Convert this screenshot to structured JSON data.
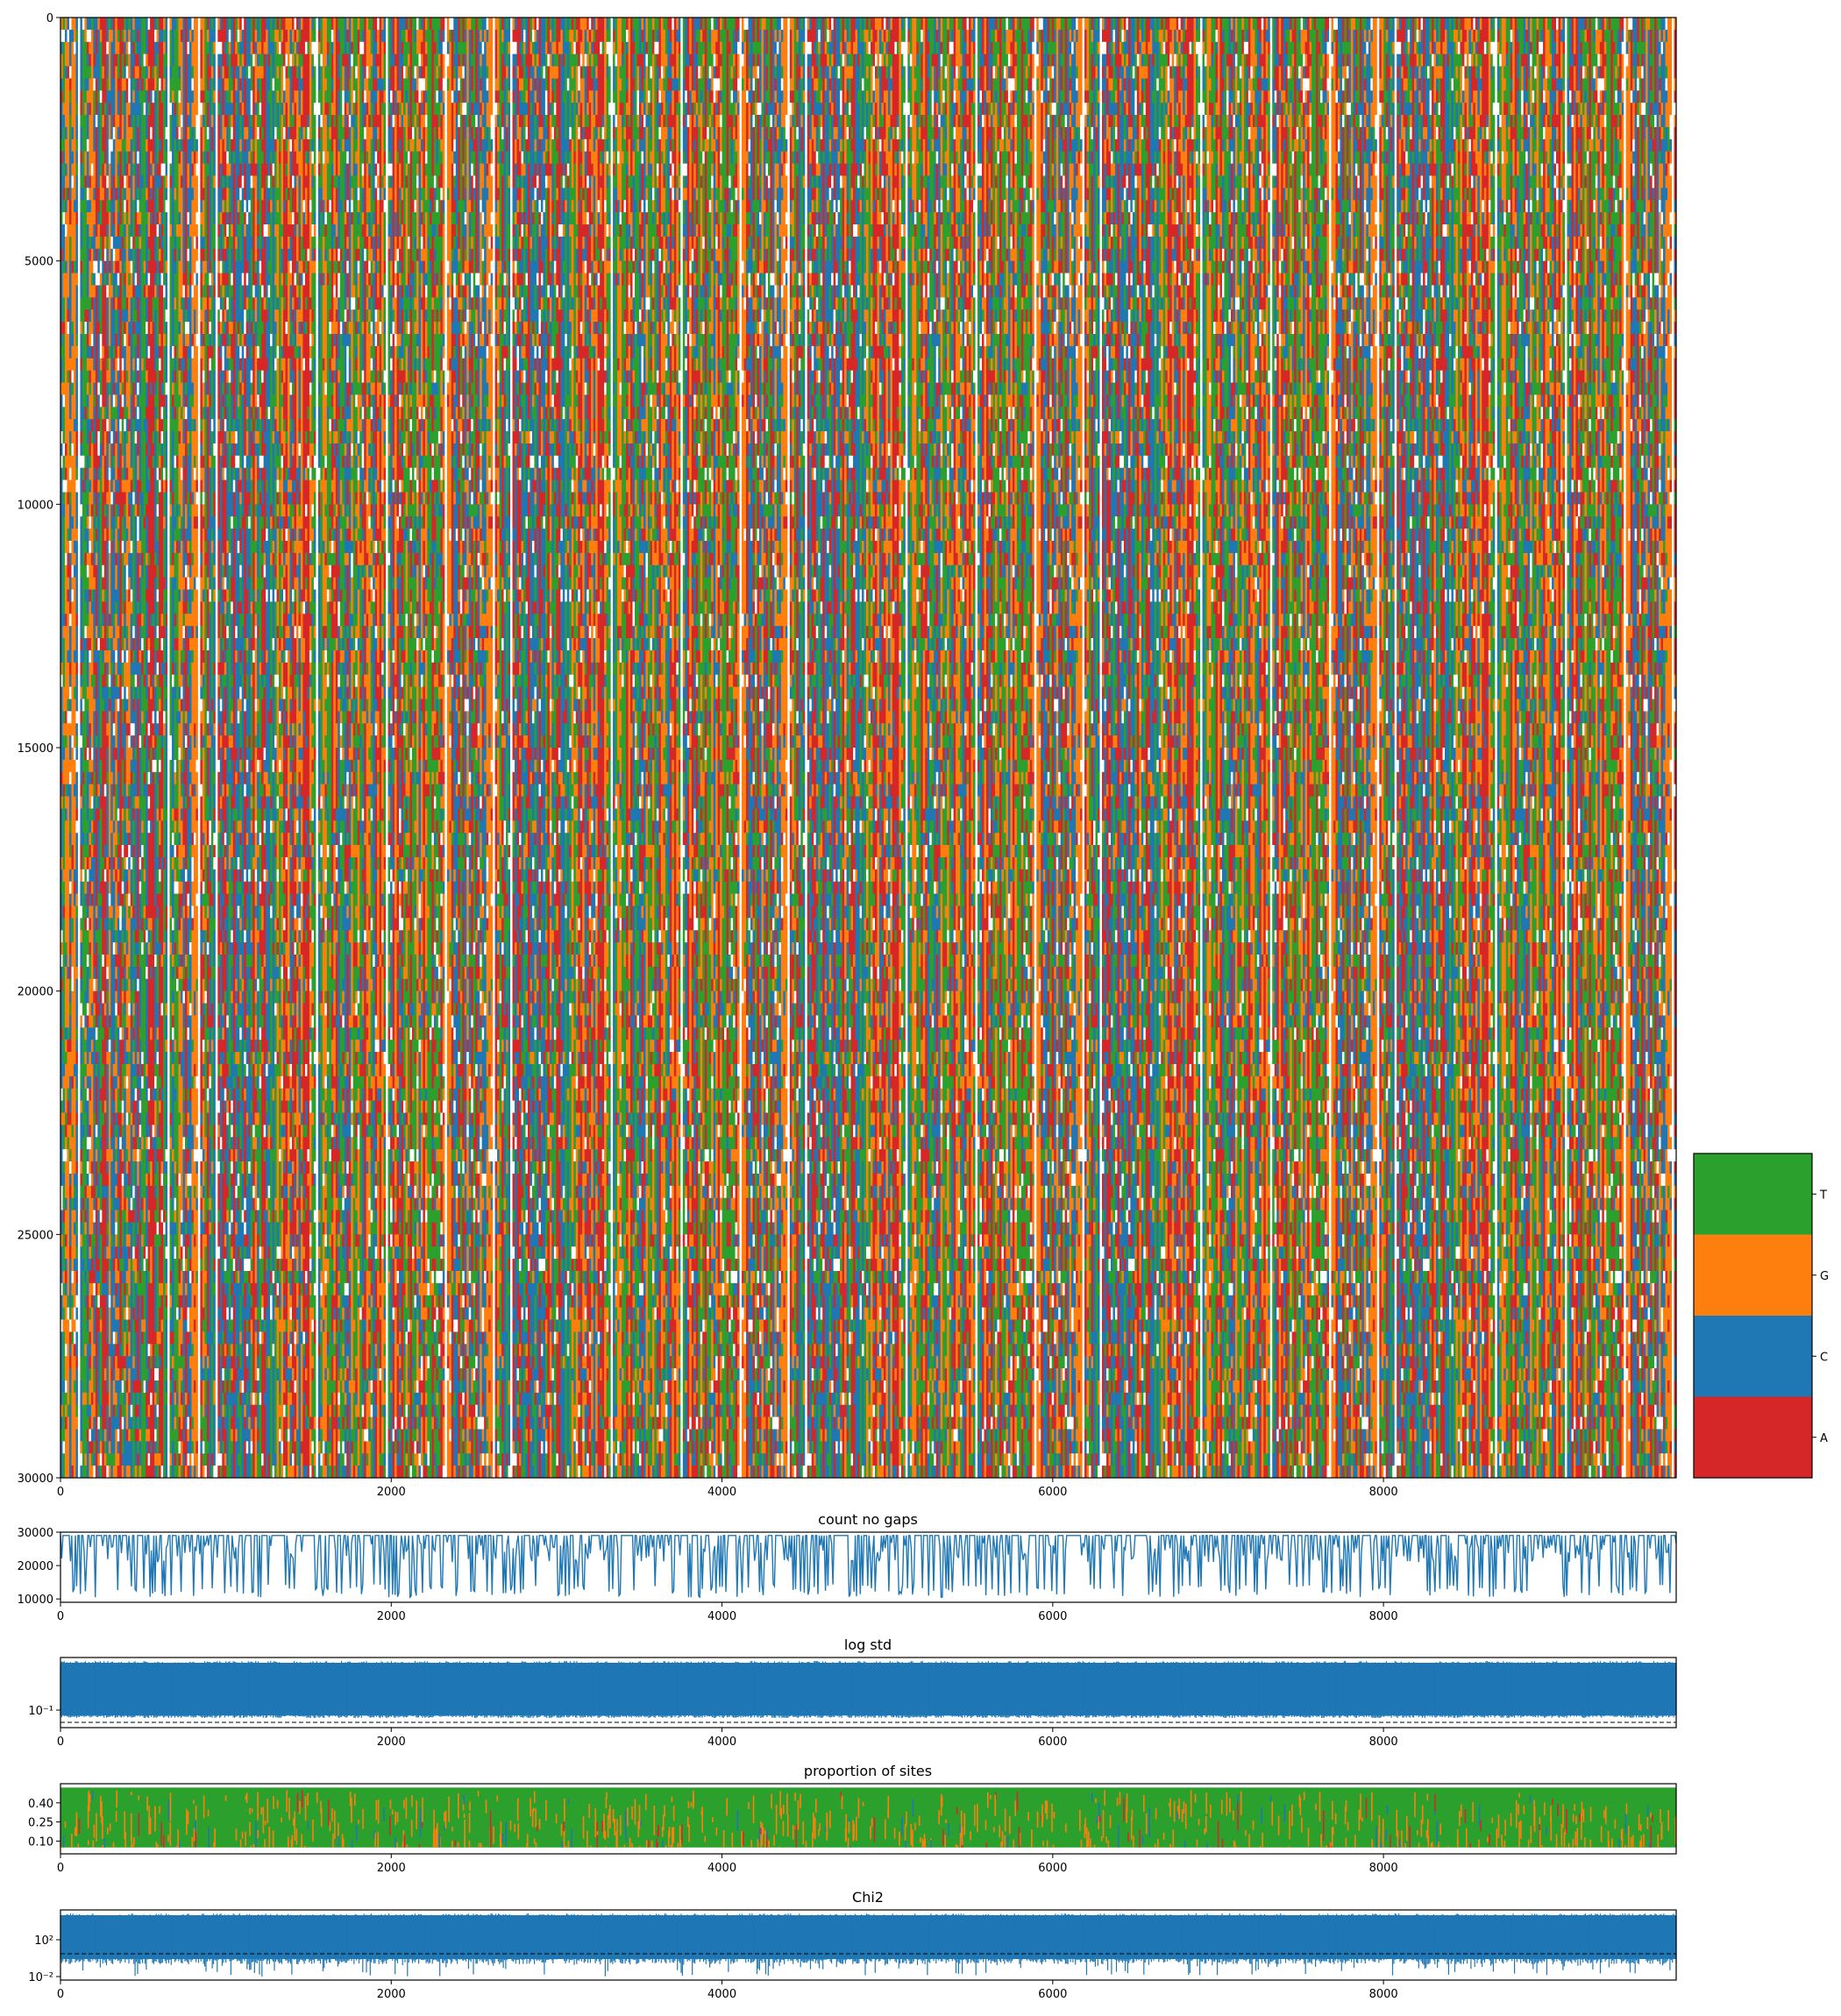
{
  "colors": {
    "A": "#d62728",
    "C": "#1f77b4",
    "G": "#ff7f0e",
    "T": "#2ca02c",
    "line": "#1f77b4",
    "axis": "#000000"
  },
  "chart_data": [
    {
      "type": "heatmap",
      "title": "",
      "xlim": [
        0,
        9770
      ],
      "ylim": [
        30000,
        0
      ],
      "xticks": [
        "0",
        "2000",
        "4000",
        "6000",
        "8000"
      ],
      "yticks": [
        "0",
        "5000",
        "10000",
        "15000",
        "20000",
        "25000",
        "30000"
      ],
      "categories": [
        "A",
        "C",
        "G",
        "T"
      ],
      "colorbar_labels": [
        "T",
        "G",
        "C",
        "A"
      ]
    },
    {
      "type": "line",
      "title": "count no gaps",
      "xlim": [
        0,
        9770
      ],
      "ylim": [
        9000,
        30000
      ],
      "xticks": [
        "0",
        "2000",
        "4000",
        "6000",
        "8000"
      ],
      "yticks": [
        "10000",
        "20000",
        "30000"
      ]
    },
    {
      "type": "line",
      "title": "log std",
      "xlim": [
        0,
        9770
      ],
      "yscale": "log",
      "xticks": [
        "0",
        "2000",
        "4000",
        "6000",
        "8000"
      ],
      "yticks": [
        "10⁻¹"
      ],
      "reference_line": "dashed"
    },
    {
      "type": "area",
      "title": "proportion of sites",
      "xlim": [
        0,
        9770
      ],
      "ylim": [
        0,
        0.55
      ],
      "xticks": [
        "0",
        "2000",
        "4000",
        "6000",
        "8000"
      ],
      "yticks": [
        "0.40",
        "0.25",
        "0.10"
      ],
      "series": [
        {
          "name": "A",
          "values": [
            0.25,
            0.25,
            0.25
          ]
        },
        {
          "name": "C",
          "values": [
            0.25,
            0.25,
            0.25
          ]
        },
        {
          "name": "G",
          "values": [
            0.25,
            0.25,
            0.25
          ]
        },
        {
          "name": "T",
          "values": [
            0.25,
            0.25,
            0.25
          ]
        }
      ]
    },
    {
      "type": "line",
      "title": "Chi2",
      "xlim": [
        0,
        9770
      ],
      "yscale": "log",
      "xticks": [
        "0",
        "2000",
        "4000",
        "6000",
        "8000"
      ],
      "yticks": [
        "10²",
        "10⁻²"
      ],
      "reference_line": "dashed"
    }
  ]
}
